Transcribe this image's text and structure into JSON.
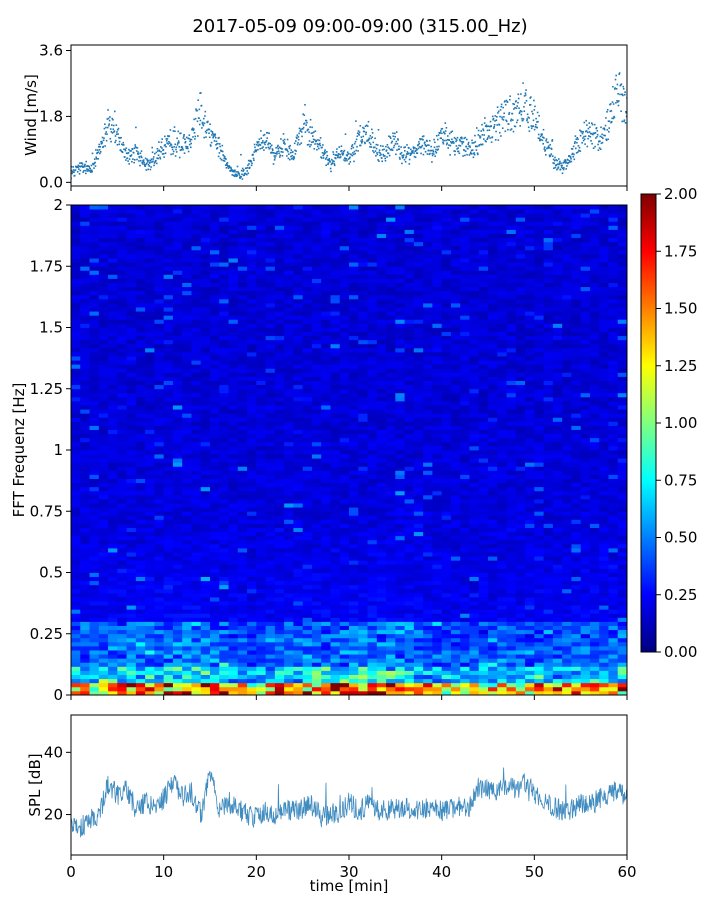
{
  "title": "2017-05-09 09:00-09:00 (315.00_Hz)",
  "chart_data": [
    {
      "type": "scatter",
      "ylabel": "Wind [m/s]",
      "xlim": [
        0,
        60
      ],
      "ylim": [
        -0.1,
        3.75
      ],
      "yticks": [
        0.0,
        1.8,
        3.6
      ],
      "ytick_labels": [
        "0.0",
        "1.8",
        "3.6"
      ],
      "xticks": [
        0,
        10,
        20,
        30,
        40,
        50,
        60
      ],
      "xtick_labels_visible": false,
      "color": "#1f77b4",
      "x": [
        0,
        1,
        2,
        3,
        4,
        5,
        6,
        7,
        8,
        9,
        10,
        11,
        12,
        13,
        14,
        15,
        16,
        17,
        18,
        19,
        20,
        21,
        22,
        23,
        24,
        25,
        26,
        27,
        28,
        29,
        30,
        31,
        32,
        33,
        34,
        35,
        36,
        37,
        38,
        39,
        40,
        41,
        42,
        43,
        44,
        45,
        46,
        47,
        48,
        49,
        50,
        51,
        52,
        53,
        54,
        55,
        56,
        57,
        58,
        59,
        60
      ],
      "y": [
        0.3,
        0.4,
        0.35,
        0.8,
        1.6,
        1.2,
        0.7,
        0.8,
        0.5,
        0.6,
        1.0,
        1.1,
        1.0,
        1.3,
        2.0,
        1.3,
        1.0,
        0.4,
        0.2,
        0.3,
        0.9,
        1.2,
        0.7,
        1.1,
        0.8,
        1.5,
        1.3,
        0.9,
        0.5,
        0.8,
        0.6,
        1.2,
        1.3,
        0.9,
        0.8,
        1.2,
        0.7,
        0.9,
        1.0,
        0.8,
        1.3,
        1.1,
        1.0,
        0.9,
        1.2,
        1.4,
        1.6,
        1.9,
        1.8,
        2.2,
        1.7,
        1.2,
        0.6,
        0.4,
        0.7,
        1.2,
        1.4,
        1.1,
        1.6,
        2.6,
        1.9
      ]
    },
    {
      "type": "heatmap",
      "ylabel": "FFT Frequenz [Hz]",
      "xlim": [
        0,
        60
      ],
      "ylim": [
        0,
        2
      ],
      "yticks": [
        0,
        0.25,
        0.5,
        0.75,
        1,
        1.25,
        1.5,
        1.75,
        2
      ],
      "ytick_labels": [
        "0",
        "0.25",
        "0.5",
        "0.75",
        "1",
        "1.25",
        "1.5",
        "1.75",
        "2"
      ],
      "xticks": [
        0,
        10,
        20,
        30,
        40,
        50,
        60
      ],
      "xtick_labels_visible": false,
      "colormap": "jet",
      "colorbar": {
        "range": [
          0,
          2
        ],
        "ticks": [
          0.0,
          0.25,
          0.5,
          0.75,
          1.0,
          1.25,
          1.5,
          1.75,
          2.0
        ],
        "tick_labels": [
          "0.00",
          "0.25",
          "0.50",
          "0.75",
          "1.00",
          "1.25",
          "1.50",
          "1.75",
          "2.00"
        ]
      },
      "time_profile_x": [
        0,
        5,
        10,
        15,
        20,
        25,
        30,
        35,
        40,
        45,
        50,
        55,
        60
      ],
      "time_profile_level": [
        0.85,
        0.95,
        1.0,
        1.15,
        0.7,
        1.0,
        1.1,
        1.15,
        0.8,
        0.75,
        0.85,
        0.85,
        0.9
      ]
    },
    {
      "type": "line",
      "ylabel": "SPL [dB]",
      "xlabel": "time [min]",
      "xlim": [
        0,
        60
      ],
      "ylim": [
        7,
        52
      ],
      "yticks": [
        20,
        40
      ],
      "ytick_labels": [
        "20",
        "40"
      ],
      "xticks": [
        0,
        10,
        20,
        30,
        40,
        50,
        60
      ],
      "xtick_labels": [
        "0",
        "10",
        "20",
        "30",
        "40",
        "50",
        "60"
      ],
      "color": "#1f77b4",
      "x": [
        0,
        1,
        2,
        3,
        4,
        5,
        6,
        7,
        8,
        9,
        10,
        11,
        12,
        13,
        14,
        15,
        16,
        17,
        18,
        19,
        20,
        21,
        22,
        23,
        24,
        25,
        26,
        27,
        28,
        29,
        30,
        31,
        32,
        33,
        34,
        35,
        36,
        37,
        38,
        39,
        40,
        41,
        42,
        43,
        44,
        45,
        46,
        47,
        48,
        49,
        50,
        51,
        52,
        53,
        54,
        55,
        56,
        57,
        58,
        59,
        60
      ],
      "y": [
        17,
        16,
        18,
        20,
        30,
        26,
        28,
        22,
        24,
        23,
        25,
        30,
        26,
        27,
        20,
        33,
        22,
        24,
        22,
        20,
        19,
        21,
        19,
        22,
        21,
        22,
        23,
        19,
        21,
        20,
        24,
        21,
        23,
        22,
        21,
        22,
        23,
        21,
        22,
        22,
        21,
        22,
        23,
        22,
        29,
        28,
        27,
        29,
        28,
        30,
        27,
        24,
        23,
        21,
        22,
        24,
        23,
        25,
        26,
        28,
        25
      ]
    }
  ]
}
